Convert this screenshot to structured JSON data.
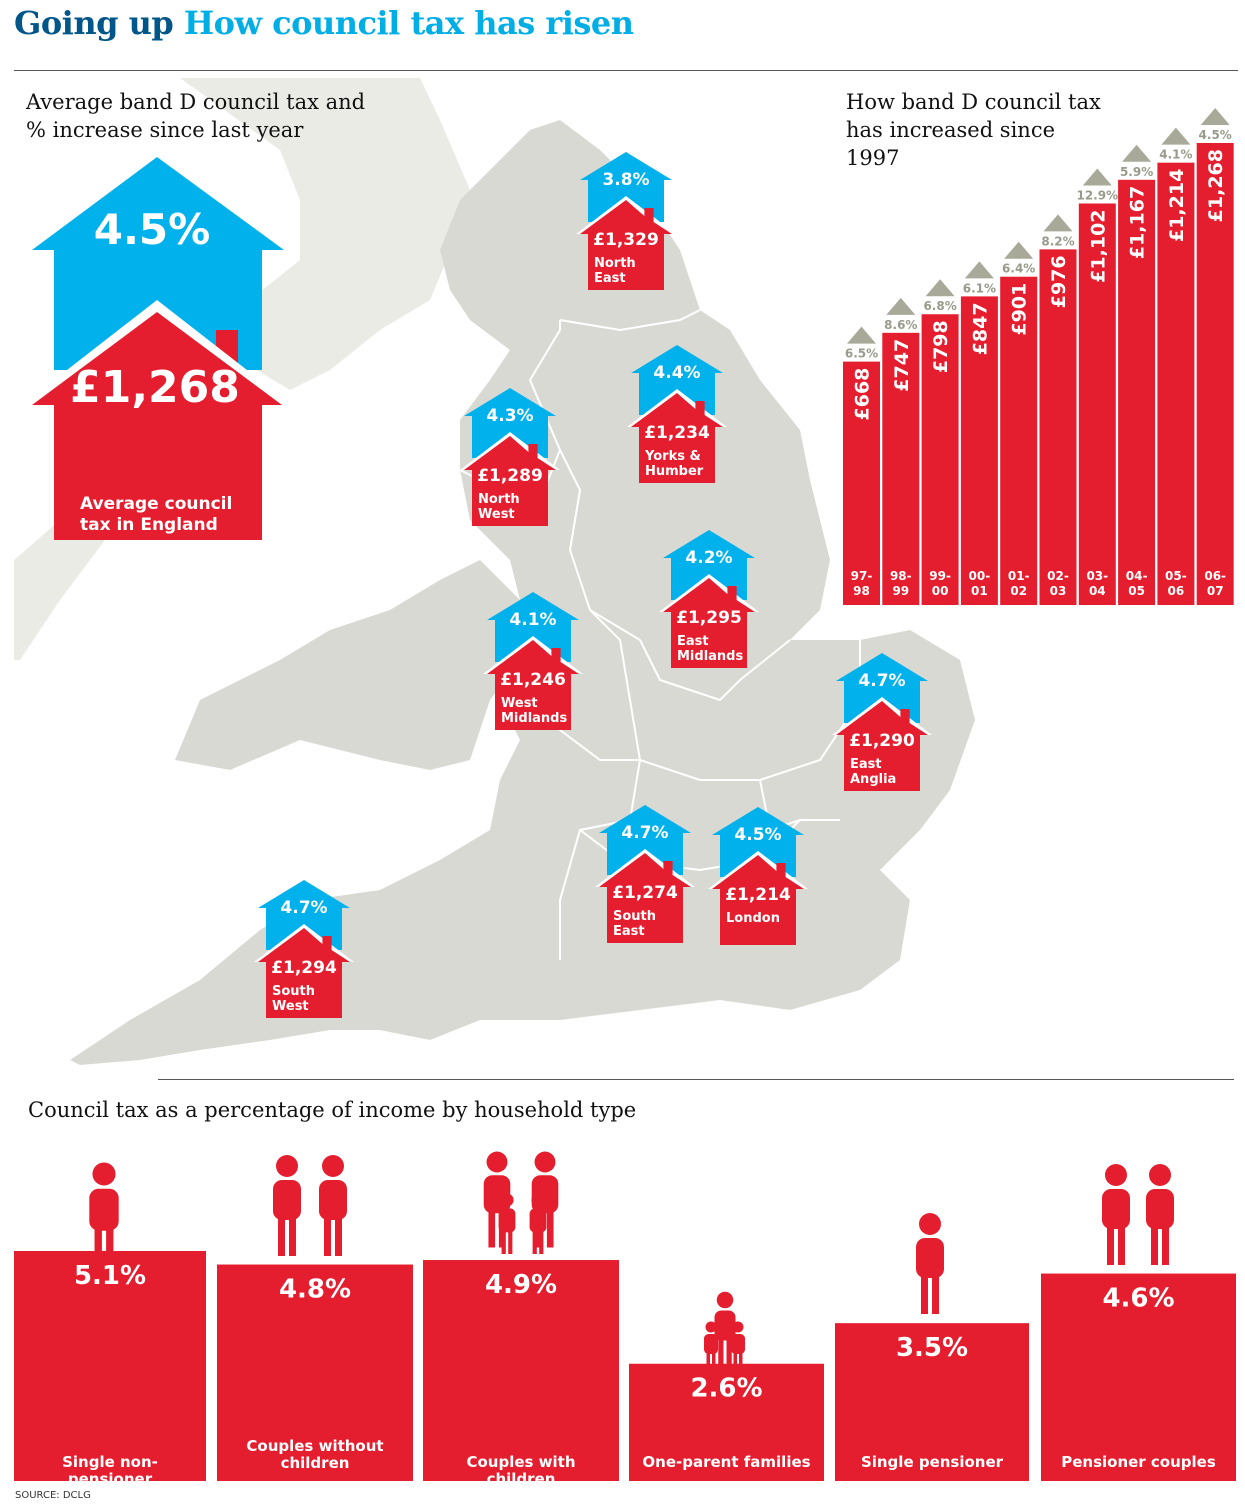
{
  "header": {
    "title_part1": "Going up",
    "title_part2": "How council tax has risen"
  },
  "map_panel": {
    "intro": "Average band D council tax and % increase since last year",
    "england": {
      "increase": "4.5%",
      "amount": "£1,268",
      "label": "Average council tax in England"
    },
    "regions": [
      {
        "key": "north-east",
        "name": "North East",
        "increase": "3.8%",
        "amount": "£1,329"
      },
      {
        "key": "yorks-humber",
        "name": "Yorks & Humber",
        "increase": "4.4%",
        "amount": "£1,234"
      },
      {
        "key": "north-west",
        "name": "North West",
        "increase": "4.3%",
        "amount": "£1,289"
      },
      {
        "key": "east-midlands",
        "name": "East Midlands",
        "increase": "4.2%",
        "amount": "£1,295"
      },
      {
        "key": "west-midlands",
        "name": "West Midlands",
        "increase": "4.1%",
        "amount": "£1,246"
      },
      {
        "key": "east-anglia",
        "name": "East Anglia",
        "increase": "4.7%",
        "amount": "£1,290"
      },
      {
        "key": "south-east",
        "name": "South East",
        "increase": "4.7%",
        "amount": "£1,274"
      },
      {
        "key": "london",
        "name": "London",
        "increase": "4.5%",
        "amount": "£1,214"
      },
      {
        "key": "south-west",
        "name": "South West",
        "increase": "4.7%",
        "amount": "£1,294"
      }
    ]
  },
  "trend_panel": {
    "intro": "How band D council tax has increased since 1997"
  },
  "income_panel": {
    "title": "Council tax as a percentage of income by household type"
  },
  "source": "SOURCE: DCLG",
  "colors": {
    "red": "#e41e2f",
    "blue": "#00b1ec",
    "map": "#d9d9d3",
    "sea_land": "#ebebe6",
    "grey_arrow": "#a9a99a",
    "headline_dark": "#005689",
    "headline_light": "#00aee6"
  },
  "chart_data": [
    {
      "type": "bar",
      "title": "How band D council tax has increased since 1997",
      "categories": [
        "97-98",
        "98-99",
        "99-00",
        "00-01",
        "01-02",
        "02-03",
        "03-04",
        "04-05",
        "05-06",
        "06-07"
      ],
      "values": [
        668,
        747,
        798,
        847,
        901,
        976,
        1102,
        1167,
        1214,
        1268
      ],
      "value_labels": [
        "£668",
        "£747",
        "£798",
        "£847",
        "£901",
        "£976",
        "£1,102",
        "£1,167",
        "£1,214",
        "£1,268"
      ],
      "increase_labels": [
        "6.5%",
        "8.6%",
        "6.8%",
        "6.1%",
        "6.4%",
        "8.2%",
        "12.9%",
        "5.9%",
        "4.1%",
        "4.5%"
      ],
      "increase": [
        6.5,
        8.6,
        6.8,
        6.1,
        6.4,
        8.2,
        12.9,
        5.9,
        4.1,
        4.5
      ]
    },
    {
      "type": "bar",
      "title": "Council tax as a percentage of income by household type",
      "categories": [
        "Single non-pensioner",
        "Couples without children",
        "Couples with children",
        "One-parent families",
        "Single pensioner",
        "Pensioner couples"
      ],
      "values": [
        5.1,
        4.8,
        4.9,
        2.6,
        3.5,
        4.6
      ],
      "value_labels": [
        "5.1%",
        "4.8%",
        "4.9%",
        "2.6%",
        "3.5%",
        "4.6%"
      ]
    }
  ]
}
